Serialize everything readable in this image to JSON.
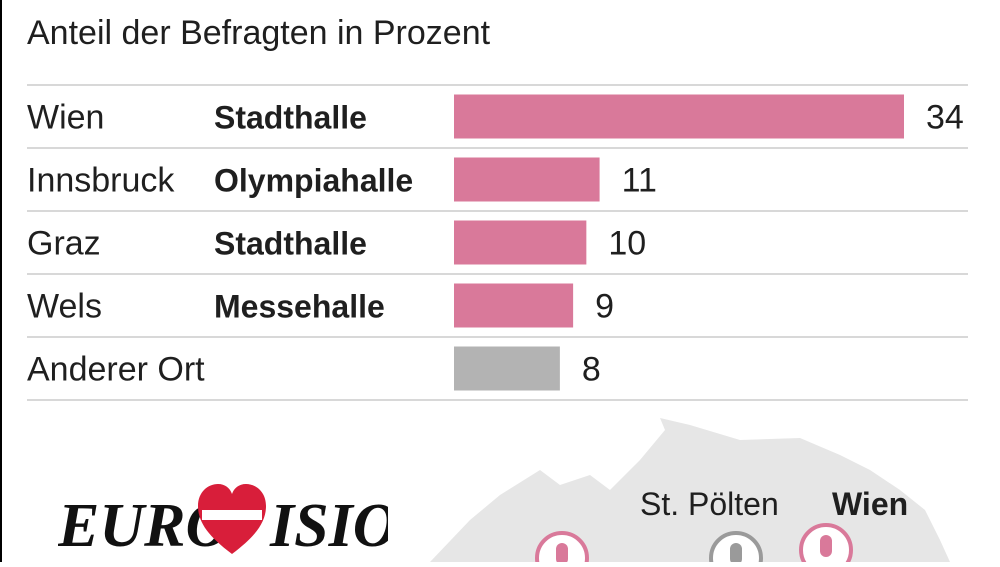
{
  "subtitle": "Anteil der Befragten in Prozent",
  "colors": {
    "highlight": "#d9799a",
    "other": "#b3b3b3",
    "rule": "#d8d8d8",
    "map": "#e6e6e6"
  },
  "chart_data": {
    "type": "bar",
    "orientation": "horizontal",
    "title": "Anteil der Befragten in Prozent",
    "categories": [
      "Wien",
      "Innsbruck",
      "Graz",
      "Wels",
      "Anderer Ort"
    ],
    "venues": [
      "Stadthalle",
      "Olympiahalle",
      "Stadthalle",
      "Messehalle",
      ""
    ],
    "values": [
      34,
      11,
      10,
      9,
      8
    ],
    "highlight": [
      true,
      true,
      true,
      true,
      false
    ],
    "xlim": [
      0,
      34
    ],
    "grid": false,
    "unit": "%"
  },
  "map": {
    "labels": [
      "St. Pölten",
      "Wien"
    ],
    "label_bold": [
      false,
      true
    ],
    "pin_icons": [
      "microphone-icon",
      "microphone-icon",
      "microphone-icon"
    ]
  },
  "logo": {
    "text": "EUROVISION",
    "icon": "heart-flag-icon"
  }
}
